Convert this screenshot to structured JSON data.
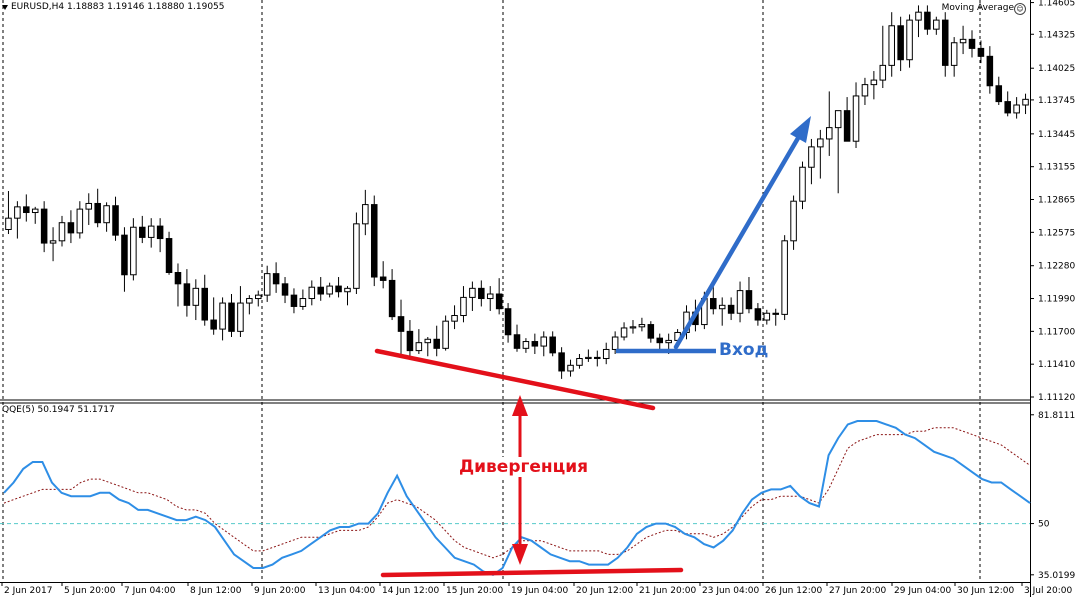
{
  "header": {
    "symbol": "EURUSD,H4",
    "open": "1.18883",
    "high": "1.19146",
    "low": "1.18880",
    "close": "1.19055",
    "indicator_label": "Moving Average"
  },
  "indicator": {
    "label": "QQE(5) 50.1947 51.1717"
  },
  "annotations": {
    "entry": "Вход",
    "divergence": "Дивергенция"
  },
  "colors": {
    "candle": "#000000",
    "qqe_line": "#2e8ee6",
    "qqe_signal": "#8b1414",
    "level_50": "#56c9c9",
    "entry": "#2f6cc9",
    "divergence": "#e3101a",
    "grid": "#000000"
  },
  "chart_data": [
    {
      "type": "candlestick",
      "title": "",
      "x_labels": [
        "2 Jun 2017",
        "5 Jun 20:00",
        "7 Jun 04:00",
        "8 Jun 12:00",
        "9 Jun 20:00",
        "13 Jun 04:00",
        "14 Jun 12:00",
        "15 Jun 20:00",
        "19 Jun 04:00",
        "20 Jun 12:00",
        "21 Jun 20:00",
        "23 Jun 04:00",
        "26 Jun 12:00",
        "27 Jun 20:00",
        "29 Jun 04:00",
        "30 Jun 12:00",
        "3 Jul 20:00"
      ],
      "y_ticks": [
        1.14605,
        1.14325,
        1.14025,
        1.13745,
        1.13445,
        1.13155,
        1.12865,
        1.12575,
        1.1228,
        1.1199,
        1.117,
        1.1141,
        1.1112
      ],
      "ylim": [
        1.1112,
        1.1461
      ],
      "grid": true,
      "candles": [
        [
          1.126,
          1.1294,
          1.1256,
          1.127
        ],
        [
          1.127,
          1.1285,
          1.1252,
          1.128
        ],
        [
          1.128,
          1.1291,
          1.1267,
          1.1275
        ],
        [
          1.1275,
          1.128,
          1.1265,
          1.1278
        ],
        [
          1.1278,
          1.1285,
          1.124,
          1.1248
        ],
        [
          1.1248,
          1.1262,
          1.1232,
          1.125
        ],
        [
          1.125,
          1.1272,
          1.1245,
          1.1266
        ],
        [
          1.1266,
          1.1277,
          1.1248,
          1.1257
        ],
        [
          1.1257,
          1.1285,
          1.1252,
          1.1278
        ],
        [
          1.1278,
          1.1292,
          1.1264,
          1.1283
        ],
        [
          1.1283,
          1.1296,
          1.1262,
          1.1266
        ],
        [
          1.1266,
          1.1284,
          1.1258,
          1.1281
        ],
        [
          1.1281,
          1.1289,
          1.125,
          1.1255
        ],
        [
          1.1255,
          1.1262,
          1.1205,
          1.122
        ],
        [
          1.122,
          1.127,
          1.1215,
          1.1262
        ],
        [
          1.1262,
          1.1272,
          1.1248,
          1.1253
        ],
        [
          1.1253,
          1.127,
          1.1244,
          1.1263
        ],
        [
          1.1263,
          1.127,
          1.124,
          1.1252
        ],
        [
          1.1252,
          1.1258,
          1.122,
          1.1222
        ],
        [
          1.1222,
          1.123,
          1.1192,
          1.1212
        ],
        [
          1.1212,
          1.1225,
          1.1183,
          1.1193
        ],
        [
          1.1193,
          1.1216,
          1.118,
          1.1208
        ],
        [
          1.1208,
          1.122,
          1.1175,
          1.118
        ],
        [
          1.118,
          1.12,
          1.1167,
          1.1172
        ],
        [
          1.1172,
          1.12,
          1.1162,
          1.1195
        ],
        [
          1.1195,
          1.1203,
          1.1165,
          1.117
        ],
        [
          1.117,
          1.121,
          1.1165,
          1.1195
        ],
        [
          1.1195,
          1.1202,
          1.1185,
          1.1199
        ],
        [
          1.1199,
          1.1206,
          1.1192,
          1.1202
        ],
        [
          1.1202,
          1.1228,
          1.1196,
          1.1221
        ],
        [
          1.1221,
          1.1231,
          1.1204,
          1.1212
        ],
        [
          1.1212,
          1.1218,
          1.1195,
          1.1202
        ],
        [
          1.1202,
          1.1208,
          1.1186,
          1.1192
        ],
        [
          1.1192,
          1.1207,
          1.1189,
          1.1199
        ],
        [
          1.1199,
          1.1215,
          1.1193,
          1.1209
        ],
        [
          1.1209,
          1.1218,
          1.1197,
          1.1203
        ],
        [
          1.1203,
          1.1213,
          1.12,
          1.121
        ],
        [
          1.121,
          1.1218,
          1.12,
          1.1205
        ],
        [
          1.1205,
          1.121,
          1.1193,
          1.1208
        ],
        [
          1.1208,
          1.1275,
          1.1203,
          1.1265
        ],
        [
          1.1265,
          1.1295,
          1.1255,
          1.1282
        ],
        [
          1.1282,
          1.129,
          1.121,
          1.1218
        ],
        [
          1.1218,
          1.1232,
          1.1208,
          1.1215
        ],
        [
          1.1215,
          1.1225,
          1.118,
          1.1183
        ],
        [
          1.1183,
          1.1198,
          1.115,
          1.117
        ],
        [
          1.117,
          1.118,
          1.1145,
          1.1153
        ],
        [
          1.1153,
          1.1172,
          1.115,
          1.116
        ],
        [
          1.116,
          1.1165,
          1.1148,
          1.1163
        ],
        [
          1.1163,
          1.1175,
          1.1148,
          1.1155
        ],
        [
          1.1155,
          1.1184,
          1.1153,
          1.1179
        ],
        [
          1.1179,
          1.1193,
          1.1172,
          1.1184
        ],
        [
          1.1184,
          1.121,
          1.1178,
          1.12
        ],
        [
          1.12,
          1.1214,
          1.1188,
          1.1208
        ],
        [
          1.1208,
          1.1215,
          1.1192,
          1.1199
        ],
        [
          1.1199,
          1.121,
          1.1188,
          1.1203
        ],
        [
          1.1203,
          1.1217,
          1.1185,
          1.119
        ],
        [
          1.119,
          1.1195,
          1.116,
          1.1167
        ],
        [
          1.1167,
          1.1176,
          1.1152,
          1.1155
        ],
        [
          1.1155,
          1.1164,
          1.1151,
          1.1161
        ],
        [
          1.1161,
          1.1168,
          1.115,
          1.1157
        ],
        [
          1.1157,
          1.117,
          1.1148,
          1.1165
        ],
        [
          1.1165,
          1.117,
          1.1148,
          1.1151
        ],
        [
          1.1151,
          1.1156,
          1.1128,
          1.1135
        ],
        [
          1.1135,
          1.1145,
          1.113,
          1.114
        ],
        [
          1.114,
          1.115,
          1.1137,
          1.1146
        ],
        [
          1.1146,
          1.1154,
          1.1143,
          1.1147
        ],
        [
          1.1147,
          1.1153,
          1.1139,
          1.1146
        ],
        [
          1.1146,
          1.116,
          1.1141,
          1.1154
        ],
        [
          1.1154,
          1.117,
          1.115,
          1.1165
        ],
        [
          1.1165,
          1.1178,
          1.1162,
          1.1173
        ],
        [
          1.1173,
          1.118,
          1.1168,
          1.1174
        ],
        [
          1.1174,
          1.1182,
          1.117,
          1.1176
        ],
        [
          1.1176,
          1.1179,
          1.116,
          1.1164
        ],
        [
          1.1164,
          1.1168,
          1.1152,
          1.116
        ],
        [
          1.116,
          1.1168,
          1.115,
          1.1162
        ],
        [
          1.1162,
          1.1172,
          1.1156,
          1.1169
        ],
        [
          1.1169,
          1.1193,
          1.1163,
          1.1187
        ],
        [
          1.1187,
          1.1198,
          1.117,
          1.1176
        ],
        [
          1.1176,
          1.1205,
          1.1172,
          1.1199
        ],
        [
          1.1199,
          1.121,
          1.1185,
          1.119
        ],
        [
          1.119,
          1.12,
          1.1175,
          1.1193
        ],
        [
          1.1193,
          1.12,
          1.118,
          1.1186
        ],
        [
          1.1186,
          1.1214,
          1.1178,
          1.1206
        ],
        [
          1.1206,
          1.1218,
          1.1186,
          1.119
        ],
        [
          1.119,
          1.1195,
          1.1175,
          1.118
        ],
        [
          1.118,
          1.1189,
          1.1176,
          1.1186
        ],
        [
          1.1186,
          1.119,
          1.1175,
          1.1185
        ],
        [
          1.1185,
          1.1255,
          1.118,
          1.125
        ],
        [
          1.125,
          1.129,
          1.1242,
          1.1285
        ],
        [
          1.1285,
          1.132,
          1.1278,
          1.1315
        ],
        [
          1.1315,
          1.134,
          1.13,
          1.1333
        ],
        [
          1.1333,
          1.1348,
          1.1305,
          1.134
        ],
        [
          1.134,
          1.1382,
          1.1325,
          1.135
        ],
        [
          1.135,
          1.1362,
          1.1292,
          1.1365
        ],
        [
          1.1365,
          1.1377,
          1.134,
          1.1338
        ],
        [
          1.1338,
          1.139,
          1.1332,
          1.1378
        ],
        [
          1.1378,
          1.1394,
          1.137,
          1.1388
        ],
        [
          1.1388,
          1.14,
          1.1375,
          1.1392
        ],
        [
          1.1392,
          1.144,
          1.1385,
          1.1405
        ],
        [
          1.1405,
          1.1452,
          1.1395,
          1.144
        ],
        [
          1.144,
          1.1448,
          1.14,
          1.141
        ],
        [
          1.141,
          1.145,
          1.1403,
          1.1445
        ],
        [
          1.1445,
          1.1458,
          1.143,
          1.1452
        ],
        [
          1.1452,
          1.1458,
          1.1432,
          1.1437
        ],
        [
          1.1437,
          1.1448,
          1.1432,
          1.1445
        ],
        [
          1.1445,
          1.1452,
          1.1395,
          1.1405
        ],
        [
          1.1405,
          1.143,
          1.1395,
          1.1425
        ],
        [
          1.1425,
          1.144,
          1.1415,
          1.1428
        ],
        [
          1.1428,
          1.1436,
          1.1412,
          1.142
        ],
        [
          1.142,
          1.1427,
          1.1407,
          1.1413
        ],
        [
          1.1413,
          1.1422,
          1.138,
          1.1387
        ],
        [
          1.1387,
          1.1395,
          1.137,
          1.1373
        ],
        [
          1.1373,
          1.1382,
          1.136,
          1.1363
        ],
        [
          1.1363,
          1.1377,
          1.1358,
          1.137
        ],
        [
          1.137,
          1.138,
          1.1362,
          1.1375
        ]
      ]
    },
    {
      "type": "line",
      "title": "QQE(5) 50.1947 51.1717",
      "y_ticks": [
        81.8111,
        50,
        35.0199
      ],
      "ylim": [
        33.5,
        83.5
      ],
      "series": [
        {
          "values": [
            59,
            62,
            66,
            68,
            68,
            62,
            59,
            58,
            58,
            58,
            59,
            59,
            57,
            56,
            54,
            54,
            53,
            52,
            51,
            51,
            52,
            51,
            49,
            45,
            41,
            39,
            37,
            37,
            38,
            40,
            41,
            42,
            44,
            46,
            48,
            49,
            49,
            50,
            50,
            53,
            59,
            64,
            58,
            54,
            50,
            46,
            43,
            40,
            39,
            38,
            36,
            35,
            37,
            43,
            46,
            45,
            43,
            41,
            40,
            39,
            39,
            38,
            38,
            38,
            40,
            43,
            47,
            49,
            50,
            50,
            49,
            47,
            46,
            44,
            43,
            45,
            48,
            53,
            57,
            59,
            60,
            60,
            61,
            58,
            56,
            55,
            70,
            75,
            79,
            80,
            80,
            80,
            79,
            78,
            76,
            75,
            73,
            71,
            70,
            69,
            67,
            65,
            63,
            62,
            62,
            60,
            58,
            56
          ]
        },
        {
          "values": [
            56,
            57,
            58,
            59,
            60,
            60,
            60,
            60,
            62,
            63,
            63,
            62,
            61,
            60,
            59,
            59,
            58,
            57,
            55,
            54,
            54,
            53,
            50,
            48,
            46,
            44,
            42,
            42,
            43,
            44,
            45,
            46,
            46,
            46,
            47,
            48,
            48,
            48,
            49,
            52,
            56,
            57,
            56,
            55,
            53,
            51,
            48,
            45,
            43,
            42,
            41,
            40,
            41,
            43,
            45,
            45,
            45,
            44,
            43,
            42,
            42,
            42,
            42,
            41,
            41,
            42,
            44,
            46,
            47,
            48,
            48,
            47,
            47,
            47,
            46,
            47,
            49,
            52,
            55,
            57,
            57,
            58,
            58,
            58,
            57,
            56,
            60,
            66,
            72,
            74,
            75,
            76,
            76,
            76,
            76,
            77,
            77,
            78,
            78,
            78,
            77,
            76,
            75,
            74,
            73,
            71,
            69,
            67
          ]
        }
      ]
    }
  ]
}
